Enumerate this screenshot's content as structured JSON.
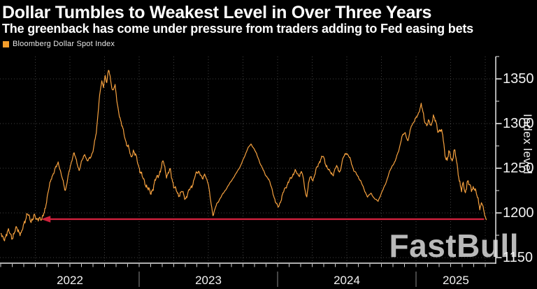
{
  "header": {
    "title": "Dollar Tumbles to Weakest Level in Over Three Years",
    "subtitle": "The greenback has come under pressure from traders adding to Fed easing bets"
  },
  "legend": {
    "label": "Bloomberg Dollar Spot Index"
  },
  "watermark": {
    "text": "FastBull"
  },
  "colors": {
    "background": "#000000",
    "line": "#f6a13f",
    "swatch": "#f59e2b",
    "arrow": "#d0213c",
    "grid": "rgba(255,255,255,0.25)",
    "axis": "#e8e8e8",
    "month_tick": "#cfcfcf",
    "year_divider": "#8a8a8a",
    "tick_text": "#f2f2f2",
    "watermark": "#b9b9b9"
  },
  "chart_data": {
    "type": "line",
    "title": "Dollar Tumbles to Weakest Level in Over Three Years",
    "subtitle": "The greenback has come under pressure from traders adding to Fed easing bets",
    "ylabel": "Index level",
    "xlabel": "",
    "ylim": [
      1143,
      1375
    ],
    "x_unit": "months since Jan 2022",
    "xlim_months": [
      0,
      42.85
    ],
    "grid": {
      "horizontal_at": [
        1150,
        1200,
        1250,
        1300,
        1350
      ],
      "vertical_every_months": 3,
      "style": "dotted"
    },
    "y_ticks_major": [
      1150,
      1200,
      1250,
      1300,
      1350
    ],
    "y_ticks_minor": [
      1175,
      1225,
      1275,
      1325,
      1375
    ],
    "x_year_labels": [
      {
        "label": "2022",
        "center_month": 6
      },
      {
        "label": "2023",
        "center_month": 18
      },
      {
        "label": "2024",
        "center_month": 30
      },
      {
        "label": "2025",
        "center_month": 39.45
      }
    ],
    "year_boundaries_months": [
      12,
      24,
      36
    ],
    "legend_position": "top-left",
    "annotation_arrow": {
      "meaning": "level last seen in April 2022, matched by June 2025 low",
      "level": 1193,
      "from_month": 3.5,
      "to_month": 41.9,
      "direction": "left"
    },
    "series": [
      {
        "name": "Bloomberg Dollar Spot Index",
        "color": "#f6a13f",
        "points_format": [
          "month_offset_from_2022_01",
          "index_value"
        ],
        "points": [
          [
            0,
            1177
          ],
          [
            0.25,
            1169
          ],
          [
            0.6,
            1180
          ],
          [
            1.0,
            1173
          ],
          [
            1.4,
            1183
          ],
          [
            1.8,
            1176
          ],
          [
            2.1,
            1192
          ],
          [
            2.3,
            1200
          ],
          [
            2.6,
            1190
          ],
          [
            2.9,
            1198
          ],
          [
            3.1,
            1191
          ],
          [
            3.35,
            1196
          ],
          [
            3.55,
            1191
          ],
          [
            3.8,
            1202
          ],
          [
            4.1,
            1222
          ],
          [
            4.4,
            1240
          ],
          [
            4.7,
            1248
          ],
          [
            5.0,
            1257
          ],
          [
            5.3,
            1240
          ],
          [
            5.6,
            1225
          ],
          [
            5.9,
            1244
          ],
          [
            6.2,
            1261
          ],
          [
            6.35,
            1268
          ],
          [
            6.6,
            1256
          ],
          [
            6.8,
            1248
          ],
          [
            7.0,
            1257
          ],
          [
            7.3,
            1266
          ],
          [
            7.5,
            1258
          ],
          [
            7.8,
            1262
          ],
          [
            8.0,
            1270
          ],
          [
            8.3,
            1290
          ],
          [
            8.55,
            1330
          ],
          [
            8.75,
            1347
          ],
          [
            8.9,
            1340
          ],
          [
            9.05,
            1354
          ],
          [
            9.2,
            1346
          ],
          [
            9.35,
            1361
          ],
          [
            9.5,
            1350
          ],
          [
            9.7,
            1337
          ],
          [
            9.9,
            1343
          ],
          [
            10.1,
            1322
          ],
          [
            10.45,
            1300
          ],
          [
            10.7,
            1288
          ],
          [
            10.9,
            1278
          ],
          [
            11.1,
            1272
          ],
          [
            11.3,
            1262
          ],
          [
            11.5,
            1270
          ],
          [
            11.75,
            1262
          ],
          [
            12.0,
            1251
          ],
          [
            12.3,
            1239
          ],
          [
            12.7,
            1229
          ],
          [
            13.0,
            1221
          ],
          [
            13.4,
            1236
          ],
          [
            13.8,
            1246
          ],
          [
            14.1,
            1258
          ],
          [
            14.4,
            1241
          ],
          [
            14.7,
            1248
          ],
          [
            15.0,
            1230
          ],
          [
            15.4,
            1220
          ],
          [
            15.7,
            1224
          ],
          [
            16.0,
            1216
          ],
          [
            16.3,
            1224
          ],
          [
            16.6,
            1231
          ],
          [
            16.9,
            1243
          ],
          [
            17.2,
            1247
          ],
          [
            17.5,
            1237
          ],
          [
            17.7,
            1244
          ],
          [
            18.0,
            1232
          ],
          [
            18.15,
            1218
          ],
          [
            18.4,
            1197
          ],
          [
            18.7,
            1209
          ],
          [
            19.0,
            1216
          ],
          [
            19.3,
            1222
          ],
          [
            19.7,
            1230
          ],
          [
            20.0,
            1236
          ],
          [
            20.4,
            1244
          ],
          [
            20.8,
            1253
          ],
          [
            21.1,
            1262
          ],
          [
            21.4,
            1272
          ],
          [
            21.7,
            1277
          ],
          [
            22.0,
            1271
          ],
          [
            22.3,
            1262
          ],
          [
            22.6,
            1252
          ],
          [
            22.9,
            1244
          ],
          [
            23.2,
            1238
          ],
          [
            23.5,
            1228
          ],
          [
            23.8,
            1212
          ],
          [
            24.05,
            1207
          ],
          [
            24.3,
            1214
          ],
          [
            24.6,
            1227
          ],
          [
            24.9,
            1233
          ],
          [
            25.2,
            1240
          ],
          [
            25.5,
            1247
          ],
          [
            25.8,
            1242
          ],
          [
            26.1,
            1246
          ],
          [
            26.5,
            1218
          ],
          [
            26.8,
            1240
          ],
          [
            27.1,
            1238
          ],
          [
            27.4,
            1250
          ],
          [
            27.7,
            1260
          ],
          [
            27.95,
            1263
          ],
          [
            28.2,
            1254
          ],
          [
            28.5,
            1246
          ],
          [
            28.8,
            1243
          ],
          [
            29.1,
            1252
          ],
          [
            29.4,
            1246
          ],
          [
            29.7,
            1262
          ],
          [
            29.95,
            1268
          ],
          [
            30.3,
            1260
          ],
          [
            30.6,
            1248
          ],
          [
            30.9,
            1242
          ],
          [
            31.2,
            1236
          ],
          [
            31.5,
            1226
          ],
          [
            31.8,
            1218
          ],
          [
            32.1,
            1222
          ],
          [
            32.4,
            1216
          ],
          [
            32.7,
            1213
          ],
          [
            33.0,
            1222
          ],
          [
            33.4,
            1234
          ],
          [
            33.7,
            1246
          ],
          [
            33.95,
            1253
          ],
          [
            34.2,
            1258
          ],
          [
            34.5,
            1270
          ],
          [
            34.8,
            1286
          ],
          [
            35.05,
            1290
          ],
          [
            35.3,
            1280
          ],
          [
            35.6,
            1298
          ],
          [
            35.9,
            1304
          ],
          [
            36.15,
            1309
          ],
          [
            36.45,
            1322
          ],
          [
            36.6,
            1312
          ],
          [
            36.75,
            1302
          ],
          [
            36.95,
            1299
          ],
          [
            37.1,
            1303
          ],
          [
            37.3,
            1296
          ],
          [
            37.5,
            1310
          ],
          [
            37.7,
            1302
          ],
          [
            37.9,
            1290
          ],
          [
            38.1,
            1295
          ],
          [
            38.3,
            1288
          ],
          [
            38.5,
            1265
          ],
          [
            38.7,
            1260
          ],
          [
            38.85,
            1268
          ],
          [
            39.0,
            1262
          ],
          [
            39.15,
            1258
          ],
          [
            39.3,
            1273
          ],
          [
            39.45,
            1262
          ],
          [
            39.6,
            1248
          ],
          [
            39.8,
            1235
          ],
          [
            39.95,
            1225
          ],
          [
            40.1,
            1233
          ],
          [
            40.25,
            1221
          ],
          [
            40.45,
            1237
          ],
          [
            40.6,
            1231
          ],
          [
            40.8,
            1226
          ],
          [
            41.0,
            1230
          ],
          [
            41.2,
            1222
          ],
          [
            41.4,
            1214
          ],
          [
            41.55,
            1206
          ],
          [
            41.7,
            1212
          ],
          [
            41.85,
            1202
          ],
          [
            42.0,
            1196
          ],
          [
            42.1,
            1192
          ]
        ]
      }
    ]
  }
}
